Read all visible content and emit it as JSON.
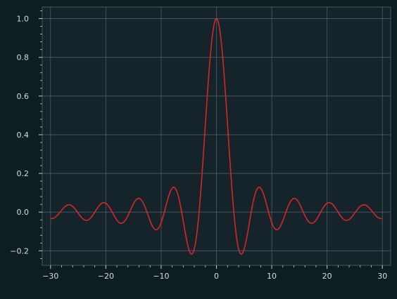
{
  "colors": {
    "figure_background": "#0e1d22",
    "axes_background": "#14242a",
    "grid": "#4d5c63",
    "spine": "#58676d",
    "tick": "#c8ced1",
    "text": "#d9dde0",
    "line": "#d62728"
  },
  "chart_data": {
    "type": "line",
    "title": "",
    "xlabel": "",
    "ylabel": "",
    "function": "sin(x)/x",
    "x_range": [
      -30,
      30
    ],
    "sample_count": 1201,
    "xlim": [
      -31.5,
      31.5
    ],
    "ylim": [
      -0.275,
      1.06
    ],
    "x_ticks": [
      -30,
      -20,
      -10,
      0,
      10,
      20,
      30
    ],
    "x_tick_labels": [
      "−30",
      "−20",
      "−10",
      "0",
      "10",
      "20",
      "30"
    ],
    "x_minor_step": 2,
    "y_ticks": [
      -0.2,
      0.0,
      0.2,
      0.4,
      0.6,
      0.8,
      1.0
    ],
    "y_tick_labels": [
      "−0.2",
      "0.0",
      "0.2",
      "0.4",
      "0.6",
      "0.8",
      "1.0"
    ],
    "y_minor_step": 0.04,
    "grid": true,
    "legend": false,
    "series": [
      {
        "color": "#d62728"
      }
    ]
  }
}
